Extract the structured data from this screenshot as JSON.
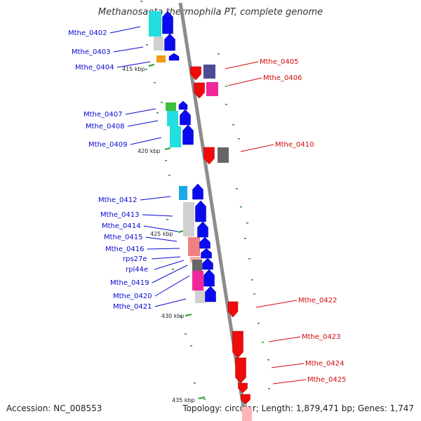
{
  "title": "Methanosaeta thermophila PT, complete genome",
  "accession": "Accession: NC_008553",
  "summary": "Topology: circular; Length: 1,879,471 bp; Genes: 1,747",
  "colors": {
    "backbone": "#8c8c8c",
    "tick": "#2e9a2e",
    "left_label": "#0a0ad2",
    "right_label": "#d20a0a",
    "forward_gene": "#0a0af0",
    "reverse_gene": "#f00a0a"
  },
  "kbp_labels": [
    "415 kbp",
    "420 kbp",
    "425 kbp",
    "430 kbp",
    "435 kbp"
  ],
  "left_labels": [
    "Mthe_0402",
    "Mthe_0403",
    "Mthe_0404",
    "Mthe_0407",
    "Mthe_0408",
    "Mthe_0409",
    "Mthe_0412",
    "Mthe_0413",
    "Mthe_0414",
    "Mthe_0415",
    "Mthe_0416",
    "rps27e",
    "rpl44e",
    "Mthe_0419",
    "Mthe_0420",
    "Mthe_0421"
  ],
  "right_labels": [
    "Mthe_0405",
    "Mthe_0406",
    "Mthe_0410",
    "Mthe_0422",
    "Mthe_0423",
    "Mthe_0424",
    "Mthe_0425"
  ]
}
